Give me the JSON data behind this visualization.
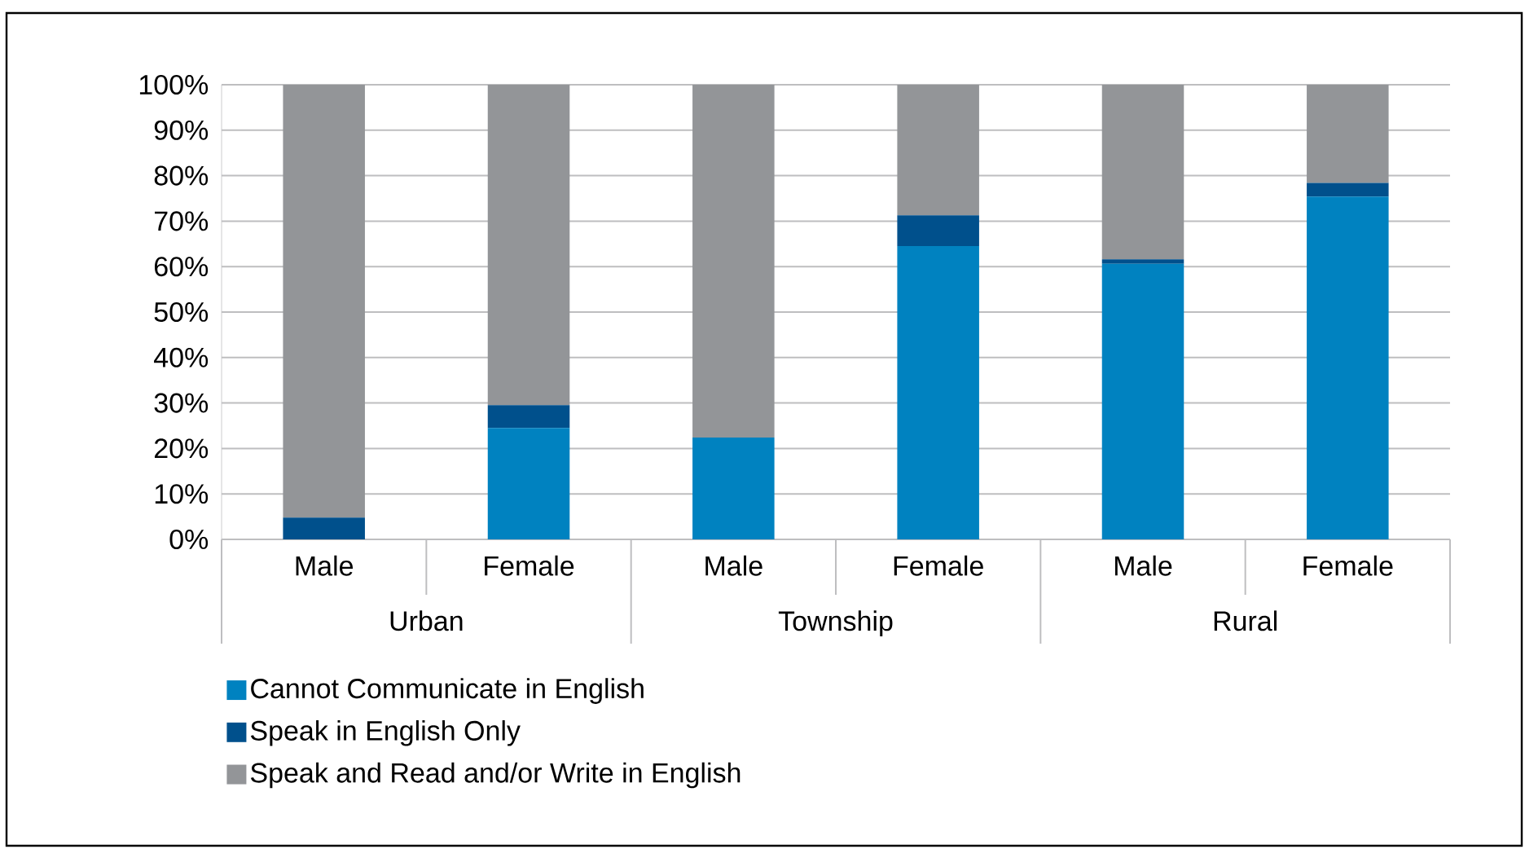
{
  "chart_data": {
    "type": "bar",
    "stacked": true,
    "categories": [
      "Male",
      "Female",
      "Male",
      "Female",
      "Male",
      "Female"
    ],
    "series": [
      {
        "name": "Cannot Communicate in English",
        "color": "#0082c0",
        "values": [
          0,
          24.5,
          22.4,
          64.5,
          60.6,
          75.4
        ]
      },
      {
        "name": "Speak in English Only",
        "color": "#00508c",
        "values": [
          4.8,
          5,
          0,
          6.8,
          1,
          3
        ]
      },
      {
        "name": "Speak and Read and/or Write in English",
        "color": "#939598",
        "values": [
          95.2,
          70.5,
          77.6,
          28.7,
          38.4,
          21.6
        ]
      }
    ],
    "annotations": [
      "Urban",
      "Township",
      "Rural"
    ],
    "ylim": [
      0,
      100
    ],
    "yticks": [
      {
        "value": 0,
        "label": "0%"
      },
      {
        "value": 10,
        "label": "10%"
      },
      {
        "value": 20,
        "label": "20%"
      },
      {
        "value": 30,
        "label": "30%"
      },
      {
        "value": 40,
        "label": "40%"
      },
      {
        "value": 50,
        "label": "50%"
      },
      {
        "value": 60,
        "label": "60%"
      },
      {
        "value": 70,
        "label": "70%"
      },
      {
        "value": 80,
        "label": "80%"
      },
      {
        "value": 90,
        "label": "90%"
      },
      {
        "value": 100,
        "label": "100%"
      }
    ],
    "grid": "y",
    "legend": "bottom"
  }
}
